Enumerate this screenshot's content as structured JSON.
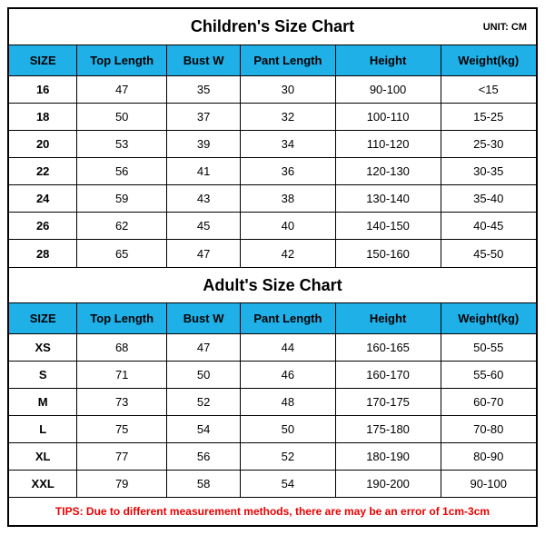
{
  "unit_label": "UNIT: CM",
  "header_bg": "#1fb0e8",
  "tips_color": "#e80000",
  "tips_text": "TIPS: Due to different measurement methods, there are may be an error of 1cm-3cm",
  "children": {
    "title": "Children's Size Chart",
    "columns": [
      "SIZE",
      "Top Length",
      "Bust W",
      "Pant Length",
      "Height",
      "Weight(kg)"
    ],
    "rows": [
      [
        "16",
        "47",
        "35",
        "30",
        "90-100",
        "<15"
      ],
      [
        "18",
        "50",
        "37",
        "32",
        "100-110",
        "15-25"
      ],
      [
        "20",
        "53",
        "39",
        "34",
        "110-120",
        "25-30"
      ],
      [
        "22",
        "56",
        "41",
        "36",
        "120-130",
        "30-35"
      ],
      [
        "24",
        "59",
        "43",
        "38",
        "130-140",
        "35-40"
      ],
      [
        "26",
        "62",
        "45",
        "40",
        "140-150",
        "40-45"
      ],
      [
        "28",
        "65",
        "47",
        "42",
        "150-160",
        "45-50"
      ]
    ]
  },
  "adult": {
    "title": "Adult's Size Chart",
    "columns": [
      "SIZE",
      "Top Length",
      "Bust W",
      "Pant Length",
      "Height",
      "Weight(kg)"
    ],
    "rows": [
      [
        "XS",
        "68",
        "47",
        "44",
        "160-165",
        "50-55"
      ],
      [
        "S",
        "71",
        "50",
        "46",
        "160-170",
        "55-60"
      ],
      [
        "M",
        "73",
        "52",
        "48",
        "170-175",
        "60-70"
      ],
      [
        "L",
        "75",
        "54",
        "50",
        "175-180",
        "70-80"
      ],
      [
        "XL",
        "77",
        "56",
        "52",
        "180-190",
        "80-90"
      ],
      [
        "XXL",
        "79",
        "58",
        "54",
        "190-200",
        "90-100"
      ]
    ]
  }
}
